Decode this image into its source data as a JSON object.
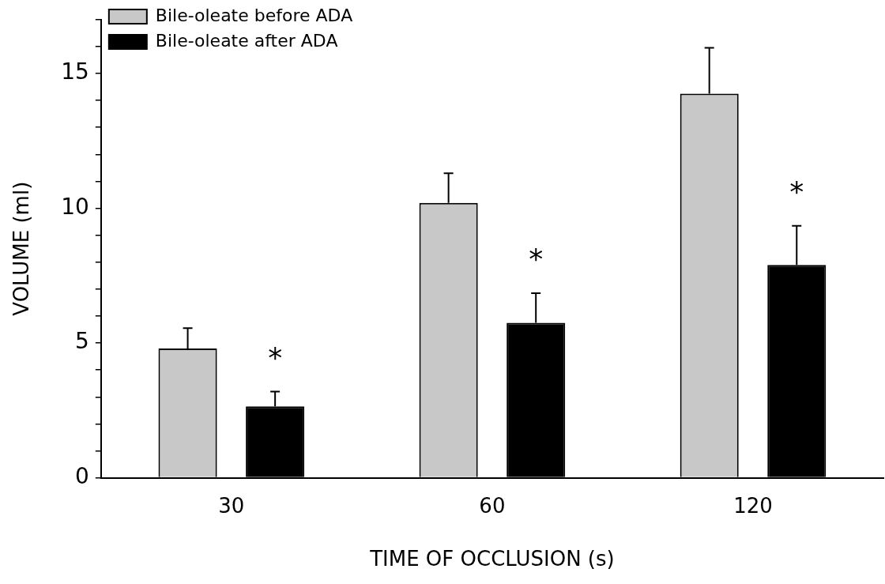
{
  "chart_data": {
    "type": "bar",
    "xlabel": "TIME OF OCCLUSION (s)",
    "ylabel": "VOLUME (ml)",
    "categories": [
      "30",
      "60",
      "120"
    ],
    "series": [
      {
        "name": "Bile-oleate before ADA",
        "color": "#c8c8c8",
        "values": [
          4.8,
          10.2,
          14.25
        ],
        "errors": [
          0.75,
          1.1,
          1.7
        ]
      },
      {
        "name": "Bile-oleate after ADA",
        "color": "#000000",
        "values": [
          2.65,
          5.75,
          7.9
        ],
        "errors": [
          0.55,
          1.1,
          1.45
        ]
      }
    ],
    "ylim": [
      0,
      17
    ],
    "yticks": [
      0,
      {
        "value": 1,
        "label": null
      },
      {
        "value": 2,
        "label": null
      },
      {
        "value": 3,
        "label": null
      },
      {
        "value": 4,
        "label": null
      },
      5,
      {
        "value": 6,
        "label": null
      },
      {
        "value": 7,
        "label": null
      },
      {
        "value": 8,
        "label": null
      },
      {
        "value": 9,
        "label": null
      },
      10,
      {
        "value": 11,
        "label": null
      },
      {
        "value": 12,
        "label": null
      },
      {
        "value": 13,
        "label": null
      },
      {
        "value": 14,
        "label": null
      },
      15,
      {
        "value": 16,
        "label": null
      },
      {
        "value": 17,
        "label": null
      }
    ],
    "annotations": [
      "*",
      "*",
      "*"
    ],
    "grid": false,
    "legend": "top left"
  }
}
